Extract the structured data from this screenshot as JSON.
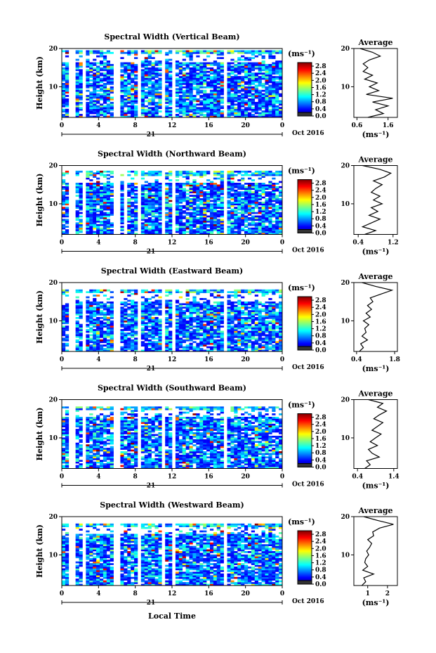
{
  "figure": {
    "footer_xlabel": "Local Time",
    "date_label": "Oct 2016",
    "day_label": "21"
  },
  "chart_data": [
    {
      "type": "heatmap",
      "title": "Spectral Width (Vertical Beam)",
      "ylabel": "Height (km)",
      "xlim": [
        0,
        24
      ],
      "ylim": [
        2,
        20
      ],
      "xticks": [
        "0",
        "4",
        "8",
        "12",
        "16",
        "20",
        "0"
      ],
      "yticks": [
        "20",
        "10"
      ],
      "colorbar": {
        "unit": "(ms⁻¹)",
        "ticks": [
          "2.8",
          "2.4",
          "2.0",
          "1.6",
          "1.2",
          "0.8",
          "0.4",
          "0.0"
        ],
        "range": [
          0,
          3.0
        ]
      },
      "gaps_hours": [
        [
          0.9,
          1.4
        ],
        [
          2.4,
          2.7
        ],
        [
          5.7,
          6.2
        ],
        [
          8.2,
          8.6
        ],
        [
          10.8,
          11.2
        ],
        [
          11.9,
          12.4
        ],
        [
          17.6,
          18.0
        ]
      ],
      "top_km": 19.5,
      "average": {
        "title": "Average",
        "xlabel": "(ms⁻¹)",
        "xlim": [
          0.5,
          1.9
        ],
        "xticks": [
          "0.6",
          "1.6"
        ],
        "ylim": [
          2,
          20
        ],
        "yticks": [
          "20",
          "10"
        ],
        "height_km": [
          2,
          3,
          4,
          5,
          6,
          7,
          8,
          9,
          10,
          11,
          12,
          13,
          14,
          15,
          16,
          17,
          18,
          19,
          20
        ],
        "values": [
          0.95,
          1.45,
          1.2,
          1.6,
          1.1,
          1.75,
          0.9,
          1.3,
          1.0,
          1.25,
          0.85,
          1.1,
          0.8,
          0.95,
          0.8,
          1.0,
          1.35,
          1.1,
          0.7
        ]
      }
    },
    {
      "type": "heatmap",
      "title": "Spectral Width (Northward Beam)",
      "ylabel": "Height (km)",
      "xlim": [
        0,
        24
      ],
      "ylim": [
        2,
        20
      ],
      "xticks": [
        "0",
        "4",
        "8",
        "12",
        "16",
        "20",
        "0"
      ],
      "yticks": [
        "20",
        "10"
      ],
      "colorbar": {
        "unit": "(ms⁻¹)",
        "ticks": [
          "2.8",
          "2.4",
          "2.0",
          "1.6",
          "1.2",
          "0.8",
          "0.4",
          "0.0"
        ],
        "range": [
          0,
          3.0
        ]
      },
      "gaps_hours": [
        [
          0.9,
          1.4
        ],
        [
          2.4,
          2.7
        ],
        [
          5.7,
          6.2
        ],
        [
          6.7,
          7.0
        ],
        [
          8.2,
          8.6
        ],
        [
          10.8,
          11.2
        ],
        [
          11.9,
          12.4
        ],
        [
          17.6,
          18.0
        ]
      ],
      "top_km": 18.5,
      "average": {
        "title": "Average",
        "xlabel": "(ms⁻¹)",
        "xlim": [
          0.3,
          1.3
        ],
        "xticks": [
          "0.4",
          "1.2"
        ],
        "ylim": [
          2,
          20
        ],
        "yticks": [
          "20",
          "10"
        ],
        "height_km": [
          2,
          3,
          4,
          5,
          6,
          7,
          8,
          9,
          10,
          11,
          12,
          13,
          14,
          15,
          16,
          17,
          18,
          19,
          20
        ],
        "values": [
          0.55,
          0.8,
          0.5,
          0.7,
          0.9,
          0.65,
          0.85,
          0.7,
          0.95,
          0.75,
          0.9,
          0.7,
          0.8,
          0.95,
          0.75,
          1.0,
          1.15,
          0.9,
          0.5
        ]
      }
    },
    {
      "type": "heatmap",
      "title": "Spectral Width (Eastward Beam)",
      "ylabel": "Height (km)",
      "xlim": [
        0,
        24
      ],
      "ylim": [
        2,
        20
      ],
      "xticks": [
        "0",
        "4",
        "8",
        "12",
        "16",
        "20",
        "0"
      ],
      "yticks": [
        "20",
        "10"
      ],
      "colorbar": {
        "unit": "(ms⁻¹)",
        "ticks": [
          "2.8",
          "2.4",
          "2.0",
          "1.6",
          "1.2",
          "0.8",
          "0.4",
          "0.0"
        ],
        "range": [
          0,
          3.0
        ]
      },
      "gaps_hours": [
        [
          0.9,
          1.4
        ],
        [
          2.4,
          2.7
        ],
        [
          5.7,
          6.2
        ],
        [
          8.2,
          8.6
        ],
        [
          10.8,
          11.2
        ],
        [
          11.9,
          12.4
        ],
        [
          17.6,
          18.0
        ]
      ],
      "top_km": 18.2,
      "average": {
        "title": "Average",
        "xlabel": "(ms⁻¹)",
        "xlim": [
          0.3,
          1.9
        ],
        "xticks": [
          "0.4",
          "1.8"
        ],
        "ylim": [
          2,
          20
        ],
        "yticks": [
          "20",
          "10"
        ],
        "height_km": [
          2,
          3,
          4,
          5,
          6,
          7,
          8,
          9,
          10,
          11,
          12,
          13,
          14,
          15,
          16,
          17,
          18,
          19,
          20
        ],
        "values": [
          0.5,
          0.65,
          0.55,
          0.8,
          0.6,
          0.75,
          0.7,
          0.85,
          0.65,
          0.9,
          0.75,
          0.95,
          0.8,
          1.0,
          0.9,
          1.3,
          1.7,
          1.1,
          0.6
        ]
      }
    },
    {
      "type": "heatmap",
      "title": "Spectral Width (Southward Beam)",
      "ylabel": "Height (km)",
      "xlim": [
        0,
        24
      ],
      "ylim": [
        2,
        20
      ],
      "xticks": [
        "0",
        "4",
        "8",
        "12",
        "16",
        "20",
        "0"
      ],
      "yticks": [
        "20",
        "10"
      ],
      "colorbar": {
        "unit": "(ms⁻¹)",
        "ticks": [
          "2.8",
          "2.4",
          "2.0",
          "1.6",
          "1.2",
          "0.8",
          "0.4",
          "0.0"
        ],
        "range": [
          0,
          3.0
        ]
      },
      "gaps_hours": [
        [
          0.9,
          1.4
        ],
        [
          2.4,
          2.7
        ],
        [
          5.7,
          6.2
        ],
        [
          8.2,
          8.6
        ],
        [
          10.8,
          11.2
        ],
        [
          11.9,
          12.4
        ],
        [
          17.6,
          18.0
        ]
      ],
      "top_km": 18.3,
      "average": {
        "title": "Average",
        "xlabel": "(ms⁻¹)",
        "xlim": [
          0.3,
          1.5
        ],
        "xticks": [
          "0.4",
          "1.4"
        ],
        "ylim": [
          2,
          20
        ],
        "yticks": [
          "20",
          "10"
        ],
        "height_km": [
          2,
          3,
          4,
          5,
          6,
          7,
          8,
          9,
          10,
          11,
          12,
          13,
          14,
          15,
          16,
          17,
          18,
          19,
          20
        ],
        "values": [
          0.6,
          0.75,
          0.65,
          1.0,
          0.8,
          0.7,
          0.95,
          0.75,
          0.9,
          1.05,
          0.8,
          0.95,
          1.1,
          0.85,
          1.0,
          1.2,
          0.95,
          1.1,
          0.7
        ]
      }
    },
    {
      "type": "heatmap",
      "title": "Spectral Width (Westward Beam)",
      "ylabel": "Height (km)",
      "xlim": [
        0,
        24
      ],
      "ylim": [
        2,
        20
      ],
      "xticks": [
        "0",
        "4",
        "8",
        "12",
        "16",
        "20",
        "0"
      ],
      "yticks": [
        "20",
        "10"
      ],
      "colorbar": {
        "unit": "(ms⁻¹)",
        "ticks": [
          "2.8",
          "2.4",
          "2.0",
          "1.6",
          "1.2",
          "0.8",
          "0.4",
          "0.0"
        ],
        "range": [
          0,
          3.0
        ]
      },
      "gaps_hours": [
        [
          0.9,
          1.4
        ],
        [
          2.4,
          2.7
        ],
        [
          5.7,
          6.2
        ],
        [
          8.2,
          8.6
        ],
        [
          10.8,
          11.2
        ],
        [
          11.9,
          12.4
        ],
        [
          17.6,
          18.0
        ]
      ],
      "top_km": 18.3,
      "average": {
        "title": "Average",
        "xlabel": "(ms⁻¹)",
        "xlim": [
          0.3,
          2.5
        ],
        "xticks": [
          "1",
          "2"
        ],
        "ylim": [
          2,
          20
        ],
        "yticks": [
          "20",
          "10"
        ],
        "height_km": [
          2,
          3,
          4,
          5,
          6,
          7,
          8,
          9,
          10,
          11,
          12,
          13,
          14,
          15,
          16,
          17,
          18,
          19,
          20
        ],
        "values": [
          0.7,
          0.9,
          0.8,
          1.3,
          0.75,
          1.0,
          0.85,
          0.9,
          1.05,
          0.95,
          1.1,
          1.2,
          1.0,
          1.3,
          1.25,
          1.6,
          2.3,
          1.5,
          0.8
        ]
      }
    }
  ]
}
